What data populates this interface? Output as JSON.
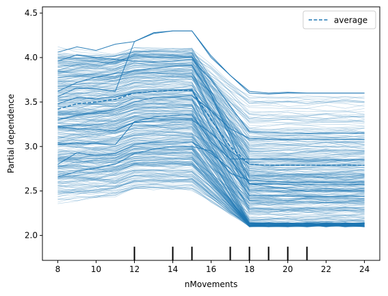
{
  "chart_data": {
    "type": "line",
    "title": "",
    "xlabel": "nMovements",
    "ylabel": "Partial dependence",
    "xlim": [
      7.2,
      24.8
    ],
    "ylim": [
      1.72,
      4.57
    ],
    "x_ticks": [
      8,
      10,
      12,
      14,
      16,
      18,
      20,
      22,
      24
    ],
    "y_ticks": [
      2.0,
      2.5,
      3.0,
      3.5,
      4.0,
      4.5
    ],
    "x_tick_labels": [
      "8",
      "10",
      "12",
      "14",
      "16",
      "18",
      "20",
      "22",
      "24"
    ],
    "y_tick_labels": [
      "2.0",
      "2.5",
      "3.0",
      "3.5",
      "4.0",
      "4.5"
    ],
    "x_grid_points": [
      8,
      9,
      10,
      11,
      12,
      13,
      14,
      15,
      16,
      17,
      18,
      19,
      20,
      21,
      22,
      23,
      24
    ],
    "rug_deciles": [
      12,
      14,
      15,
      17,
      18,
      19,
      20,
      21
    ],
    "legend": {
      "position": "top-right",
      "entries": [
        "average"
      ]
    },
    "grid": false,
    "color": "#1f77b4",
    "ice_profile_count": 400,
    "highlighted_curves": [
      {
        "values": [
          4.06,
          4.12,
          4.08,
          4.15,
          4.18,
          4.27,
          4.3,
          4.3,
          4.0,
          3.8,
          3.62,
          3.6,
          3.61,
          3.6,
          3.6,
          3.6,
          3.6
        ]
      },
      {
        "values": [
          3.96,
          4.03,
          4.0,
          3.98,
          3.96,
          3.95,
          3.96,
          3.98,
          3.75,
          3.45,
          3.17,
          3.16,
          3.15,
          3.15,
          3.15,
          3.15,
          3.15
        ]
      },
      {
        "values": [
          3.56,
          3.66,
          3.65,
          3.62,
          4.18,
          4.28,
          4.3,
          4.3,
          4.02,
          3.8,
          3.6,
          3.59,
          3.6,
          3.6,
          3.6,
          3.6,
          3.6
        ]
      },
      {
        "values": [
          3.62,
          3.72,
          3.78,
          3.82,
          3.85,
          3.88,
          3.9,
          3.91,
          3.58,
          3.1,
          2.58,
          2.55,
          2.52,
          2.5,
          2.5,
          2.5,
          2.5
        ]
      },
      {
        "values": [
          3.3,
          3.35,
          3.38,
          3.42,
          3.5,
          3.55,
          3.56,
          3.57,
          3.4,
          3.2,
          3.09,
          3.08,
          3.08,
          3.08,
          3.08,
          3.08,
          3.08
        ]
      },
      {
        "values": [
          3.02,
          3.04,
          3.03,
          3.02,
          3.28,
          3.33,
          3.35,
          3.36,
          3.05,
          2.86,
          2.86,
          2.86,
          2.86,
          2.85,
          2.85,
          2.85,
          2.85
        ]
      },
      {
        "values": [
          2.8,
          2.93,
          2.9,
          2.92,
          3.02,
          3.05,
          3.05,
          3.05,
          2.92,
          2.75,
          2.45,
          2.45,
          2.44,
          2.44,
          2.44,
          2.44,
          2.44
        ]
      },
      {
        "values": [
          2.66,
          2.72,
          2.76,
          2.8,
          2.92,
          2.97,
          3.0,
          3.0,
          2.95,
          2.7,
          2.62,
          2.61,
          2.6,
          2.6,
          2.6,
          2.6,
          2.6
        ]
      },
      {
        "values": [
          3.48,
          3.55,
          3.54,
          3.56,
          3.6,
          3.62,
          3.63,
          3.64,
          3.2,
          2.85,
          2.58,
          2.58,
          2.57,
          2.57,
          2.57,
          2.57,
          2.57
        ]
      },
      {
        "values": [
          3.22,
          3.2,
          3.19,
          3.18,
          3.27,
          3.29,
          3.3,
          3.3,
          3.15,
          2.95,
          2.8,
          2.79,
          2.79,
          2.79,
          2.79,
          2.79,
          2.79
        ]
      }
    ],
    "average": {
      "name": "average",
      "values": [
        3.42,
        3.48,
        3.5,
        3.53,
        3.6,
        3.62,
        3.63,
        3.63,
        3.3,
        3.0,
        2.8,
        2.79,
        2.79,
        2.79,
        2.79,
        2.79,
        2.79
      ]
    }
  }
}
